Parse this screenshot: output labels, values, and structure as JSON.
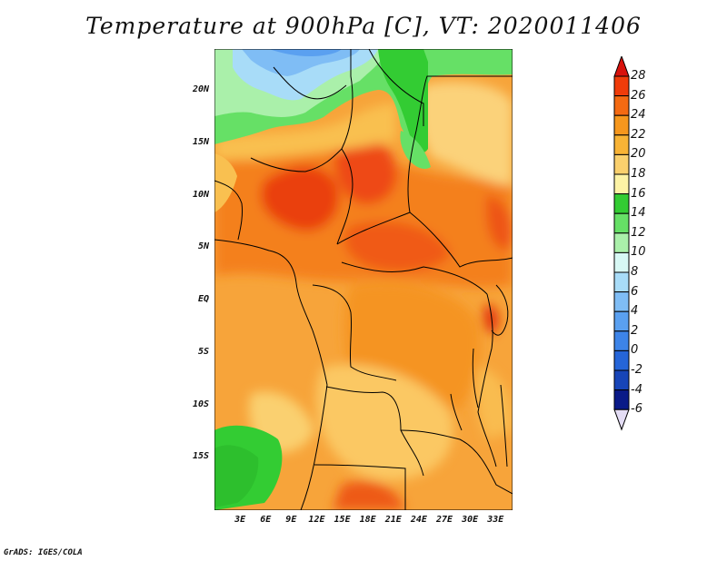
{
  "title": "Temperature at 900hPa [C], VT: 2020011406",
  "footer": "GrADS: IGES/COLA",
  "map": {
    "lat_range": [
      -20,
      24
    ],
    "lon_range": [
      0,
      35
    ],
    "lat_ticks": [
      {
        "value": 20,
        "label": "20N"
      },
      {
        "value": 15,
        "label": "15N"
      },
      {
        "value": 10,
        "label": "10N"
      },
      {
        "value": 5,
        "label": "5N"
      },
      {
        "value": 0,
        "label": "EQ"
      },
      {
        "value": -5,
        "label": "5S"
      },
      {
        "value": -10,
        "label": "10S"
      },
      {
        "value": -15,
        "label": "15S"
      }
    ],
    "lon_ticks": [
      {
        "value": 3,
        "label": "3E"
      },
      {
        "value": 6,
        "label": "6E"
      },
      {
        "value": 9,
        "label": "9E"
      },
      {
        "value": 12,
        "label": "12E"
      },
      {
        "value": 15,
        "label": "15E"
      },
      {
        "value": 18,
        "label": "18E"
      },
      {
        "value": 21,
        "label": "21E"
      },
      {
        "value": 24,
        "label": "24E"
      },
      {
        "value": 27,
        "label": "27E"
      },
      {
        "value": 30,
        "label": "30E"
      },
      {
        "value": 33,
        "label": "33E"
      }
    ]
  },
  "colorbar": {
    "levels": [
      "28",
      "26",
      "24",
      "22",
      "20",
      "18",
      "16",
      "14",
      "12",
      "10",
      "8",
      "6",
      "4",
      "2",
      "0",
      "-2",
      "-4",
      "-6"
    ],
    "colors": [
      "#e11a06",
      "#f03c0a",
      "#f46a12",
      "#f6971d",
      "#f8b335",
      "#fad06d",
      "#fdf3a5",
      "#33cc33",
      "#66e066",
      "#aaf0aa",
      "#d7f8f4",
      "#a8dcf8",
      "#7fbdf5",
      "#5aa0f0",
      "#3d84e8",
      "#2565d8",
      "#1745b8",
      "#0a1a88"
    ],
    "top_cap": "#d8120c",
    "bottom_cap": "#e4ddf5"
  }
}
